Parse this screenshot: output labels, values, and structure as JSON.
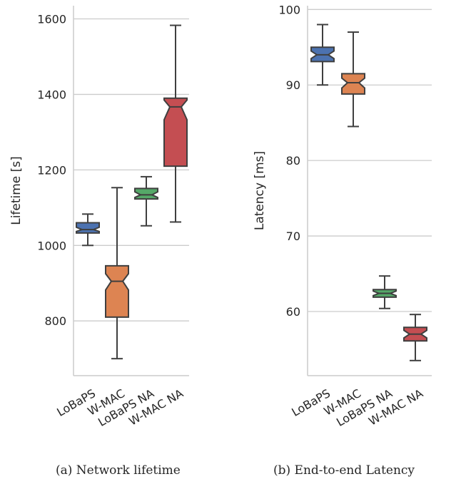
{
  "captions": {
    "a": "(a) Network lifetime",
    "b": "(b) End-to-end Latency"
  },
  "chart_data": [
    {
      "type": "boxplot",
      "notched": true,
      "title": "",
      "xlabel": "",
      "ylabel": "Lifetime [s]",
      "ylim": [
        655,
        1635
      ],
      "yticks": [
        800,
        1000,
        1200,
        1400,
        1600
      ],
      "grid": "horizontal",
      "categories": [
        "LoBaPS",
        "W-MAC",
        "LoBaPS NA",
        "W-MAC NA"
      ],
      "colors": [
        "#4c72b0",
        "#dd8452",
        "#55a868",
        "#c44e52"
      ],
      "boxes": [
        {
          "whisker_low": 1000,
          "q1": 1033,
          "notch_low": 1037,
          "median": 1042,
          "notch_high": 1048,
          "q3": 1060,
          "whisker_high": 1083
        },
        {
          "whisker_low": 700,
          "q1": 810,
          "notch_low": 882,
          "median": 905,
          "notch_high": 925,
          "q3": 946,
          "whisker_high": 1153
        },
        {
          "whisker_low": 1052,
          "q1": 1123,
          "notch_low": 1127,
          "median": 1134,
          "notch_high": 1142,
          "q3": 1151,
          "whisker_high": 1182
        },
        {
          "whisker_low": 1062,
          "q1": 1210,
          "notch_low": 1333,
          "median": 1367,
          "notch_high": 1385,
          "q3": 1390,
          "whisker_high": 1583
        }
      ]
    },
    {
      "type": "boxplot",
      "notched": true,
      "title": "",
      "xlabel": "",
      "ylabel": "Latency [ms]",
      "ylim": [
        51.5,
        100.5
      ],
      "yticks": [
        60,
        70,
        80,
        90,
        100
      ],
      "grid": "horizontal",
      "categories": [
        "LoBaPS",
        "W-MAC",
        "LoBaPS NA",
        "W-MAC NA"
      ],
      "colors": [
        "#4c72b0",
        "#dd8452",
        "#55a868",
        "#c44e52"
      ],
      "boxes": [
        {
          "whisker_low": 90,
          "q1": 93.1,
          "notch_low": 93.5,
          "median": 94,
          "notch_high": 94.5,
          "q3": 95,
          "whisker_high": 98
        },
        {
          "whisker_low": 84.5,
          "q1": 88.8,
          "notch_low": 89.6,
          "median": 90.3,
          "notch_high": 90.9,
          "q3": 91.5,
          "whisker_high": 97
        },
        {
          "whisker_low": 60.4,
          "q1": 61.9,
          "notch_low": 62.1,
          "median": 62.4,
          "notch_high": 62.7,
          "q3": 62.9,
          "whisker_high": 64.7
        },
        {
          "whisker_low": 53.5,
          "q1": 56.1,
          "notch_low": 56.5,
          "median": 57,
          "notch_high": 57.5,
          "q3": 57.9,
          "whisker_high": 59.6
        }
      ]
    }
  ]
}
